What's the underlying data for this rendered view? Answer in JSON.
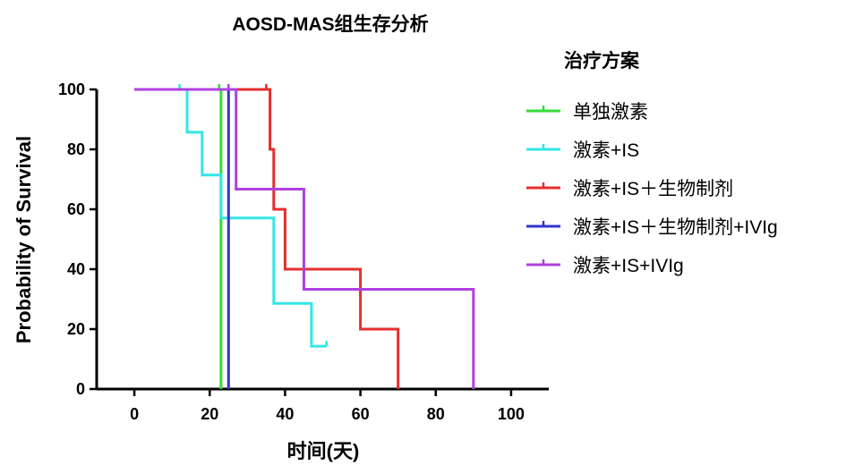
{
  "chart_data": {
    "type": "line",
    "subtype": "kaplan-meier step survival curve",
    "title": "AOSD-MAS组生存分析",
    "xlabel": "时间(天)",
    "ylabel": "Probability of Survival",
    "xlim": [
      -10,
      110
    ],
    "ylim": [
      0,
      100
    ],
    "xticks": [
      0,
      20,
      40,
      60,
      80,
      100
    ],
    "yticks": [
      0,
      20,
      40,
      60,
      80,
      100
    ],
    "grid": false,
    "legend": {
      "title": "治疗方案",
      "placement": "right"
    },
    "series": [
      {
        "name": "单独激素",
        "color": "#33dd33",
        "x": [
          0,
          23,
          23
        ],
        "y": [
          100,
          100,
          0
        ],
        "censored_x": [
          22.5
        ]
      },
      {
        "name": "激素+IS",
        "color": "#33e6e6",
        "x": [
          0,
          14,
          14,
          18,
          18,
          23,
          23,
          37,
          37,
          47,
          47,
          51
        ],
        "y": [
          100,
          100,
          85.7,
          85.7,
          71.4,
          71.4,
          57.1,
          57.1,
          28.6,
          28.6,
          14.3,
          14.3
        ],
        "censored_x": [
          12,
          51
        ]
      },
      {
        "name": "激素+IS＋生物制剂",
        "color": "#e62e2e",
        "x": [
          0,
          36,
          36,
          37,
          37,
          40,
          40,
          60,
          60,
          70,
          70
        ],
        "y": [
          100,
          100,
          80,
          80,
          60,
          60,
          40,
          40,
          20,
          20,
          0
        ],
        "censored_x": [
          35
        ]
      },
      {
        "name": "激素+IS＋生物制剂+IVIg",
        "color": "#3333cc",
        "x": [
          0,
          25,
          25
        ],
        "y": [
          100,
          100,
          0
        ],
        "censored_x": []
      },
      {
        "name": "激素+IS+IVIg",
        "color": "#b040e0",
        "x": [
          0,
          27,
          27,
          45,
          45,
          90,
          90
        ],
        "y": [
          100,
          100,
          66.7,
          66.7,
          33.3,
          33.3,
          0
        ],
        "censored_x": [
          25
        ]
      }
    ]
  }
}
